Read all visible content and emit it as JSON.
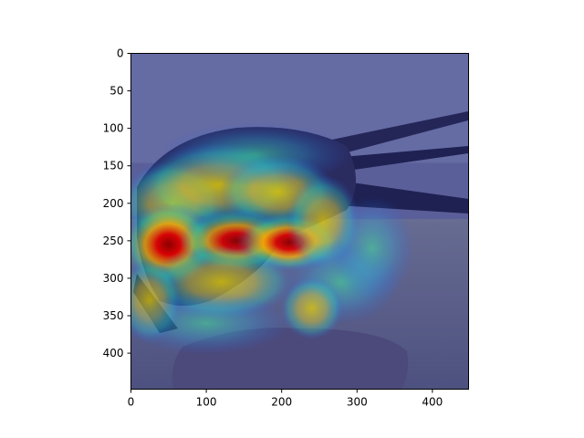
{
  "chart_data": {
    "type": "heatmap",
    "title": "",
    "xlabel": "",
    "ylabel": "",
    "xlim": [
      0,
      448
    ],
    "ylim": [
      448,
      0
    ],
    "x_ticks": [
      0,
      100,
      200,
      300,
      400
    ],
    "y_ticks": [
      0,
      50,
      100,
      150,
      200,
      250,
      300,
      350,
      400
    ],
    "x_tick_labels": [
      "0",
      "100",
      "200",
      "300",
      "400"
    ],
    "y_tick_labels": [
      "0",
      "50",
      "100",
      "150",
      "200",
      "250",
      "300",
      "350",
      "400"
    ],
    "colormap": "jet",
    "background_image": "bird-on-rock-photo",
    "grid": false,
    "hotspots": [
      {
        "x": 55,
        "y": 200,
        "rx": 50,
        "ry": 40,
        "intensity": 0.7
      },
      {
        "x": 115,
        "y": 175,
        "rx": 75,
        "ry": 40,
        "intensity": 0.65
      },
      {
        "x": 195,
        "y": 185,
        "rx": 55,
        "ry": 35,
        "intensity": 0.7
      },
      {
        "x": 50,
        "y": 255,
        "rx": 45,
        "ry": 40,
        "intensity": 1.0
      },
      {
        "x": 140,
        "y": 250,
        "rx": 55,
        "ry": 30,
        "intensity": 0.85
      },
      {
        "x": 210,
        "y": 252,
        "rx": 50,
        "ry": 28,
        "intensity": 0.95
      },
      {
        "x": 255,
        "y": 225,
        "rx": 35,
        "ry": 45,
        "intensity": 0.55
      },
      {
        "x": 120,
        "y": 305,
        "rx": 70,
        "ry": 35,
        "intensity": 0.6
      },
      {
        "x": 25,
        "y": 330,
        "rx": 30,
        "ry": 40,
        "intensity": 0.5
      },
      {
        "x": 280,
        "y": 305,
        "rx": 55,
        "ry": 40,
        "intensity": 0.45
      },
      {
        "x": 240,
        "y": 340,
        "rx": 30,
        "ry": 30,
        "intensity": 0.55
      },
      {
        "x": 165,
        "y": 135,
        "rx": 90,
        "ry": 30,
        "intensity": 0.4
      },
      {
        "x": 100,
        "y": 360,
        "rx": 80,
        "ry": 30,
        "intensity": 0.35
      },
      {
        "x": 320,
        "y": 260,
        "rx": 40,
        "ry": 50,
        "intensity": 0.35
      }
    ]
  }
}
